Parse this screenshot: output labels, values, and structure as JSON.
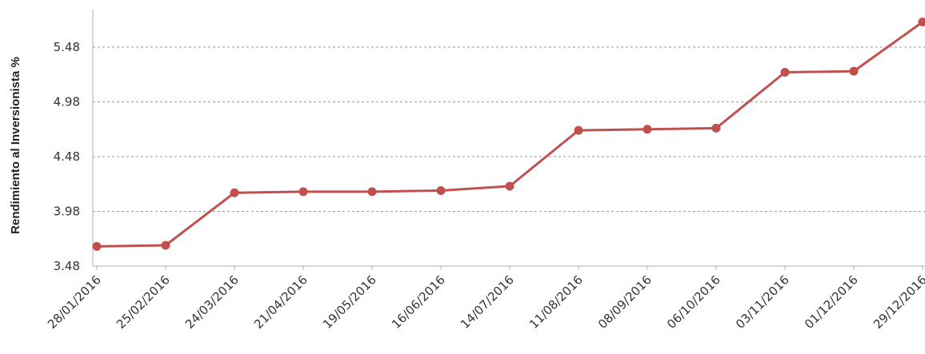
{
  "chart_data": {
    "type": "line",
    "ylabel": "Rendimiento al Inversionista %",
    "xlabel": "",
    "title": "",
    "categories": [
      "28/01/2016",
      "25/02/2016",
      "24/03/2016",
      "21/04/2016",
      "19/05/2016",
      "16/06/2016",
      "14/07/2016",
      "11/08/2016",
      "08/09/2016",
      "06/10/2016",
      "03/11/2016",
      "01/12/2016",
      "29/12/2016"
    ],
    "y_ticks": [
      "3.48",
      "3.98",
      "4.48",
      "4.98",
      "5.48"
    ],
    "ylim": [
      3.48,
      5.73
    ],
    "grid": true,
    "series": [
      {
        "color": "#c0504d",
        "values": [
          3.66,
          3.67,
          4.15,
          4.16,
          4.16,
          4.17,
          4.21,
          4.72,
          4.73,
          4.74,
          5.25,
          5.26,
          5.71
        ]
      }
    ]
  }
}
